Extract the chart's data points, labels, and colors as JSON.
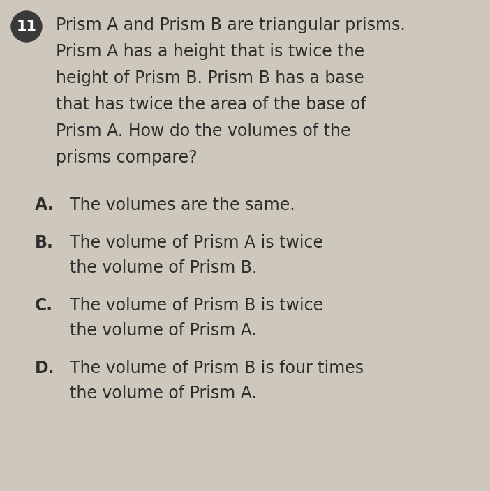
{
  "background_color": "#cec8bc",
  "question_number": "11",
  "question_number_bg": "#3a3a3a",
  "question_text_lines": [
    "Prism A and Prism B are triangular prisms.",
    "Prism A has a height that is twice the",
    "height of Prism B. Prism B has a base",
    "that has twice the area of the base of",
    "Prism A. How do the volumes of the",
    "prisms compare?"
  ],
  "answers": [
    {
      "label": "A.",
      "lines": [
        "The volumes are the same."
      ]
    },
    {
      "label": "B.",
      "lines": [
        "The volume of Prism A is twice",
        "the volume of Prism B."
      ]
    },
    {
      "label": "C.",
      "lines": [
        "The volume of Prism B is twice",
        "the volume of Prism A."
      ]
    },
    {
      "label": "D.",
      "lines": [
        "The volume of Prism B is four times",
        "the volume of Prism A."
      ]
    }
  ],
  "text_color": "#2e2e2e",
  "label_color": "#2e2e2e",
  "question_font_size": 17,
  "answer_font_size": 17,
  "label_font_size": 17,
  "fig_width": 7.02,
  "fig_height": 7.04,
  "dpi": 100
}
